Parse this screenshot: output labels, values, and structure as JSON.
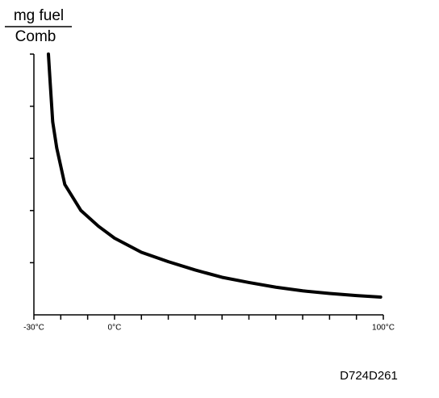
{
  "chart_data": {
    "type": "line",
    "y_label_top": "mg fuel",
    "y_label_bottom": "Comb",
    "figure_id": "D724D261",
    "color": "#000000",
    "xlim": [
      -30,
      100
    ],
    "xticks": [
      {
        "value": -30,
        "label": "-30°C"
      },
      -20,
      -10,
      {
        "value": 0,
        "label": "0°C"
      },
      10,
      20,
      30,
      40,
      50,
      60,
      70,
      80,
      90,
      {
        "value": 100,
        "label": "100°C"
      }
    ],
    "ylim": [
      0,
      5
    ],
    "yticks": [
      1,
      2,
      3,
      4,
      5
    ],
    "x": [
      -24.6,
      -24,
      -23,
      -21.5,
      -18.5,
      -12.5,
      -6,
      0,
      10,
      20,
      30,
      40,
      50,
      60,
      70,
      80,
      90,
      99
    ],
    "values": [
      5.0,
      4.5,
      3.7,
      3.2,
      2.5,
      2.0,
      1.7,
      1.47,
      1.2,
      1.02,
      0.86,
      0.72,
      0.62,
      0.53,
      0.46,
      0.41,
      0.37,
      0.34
    ]
  }
}
